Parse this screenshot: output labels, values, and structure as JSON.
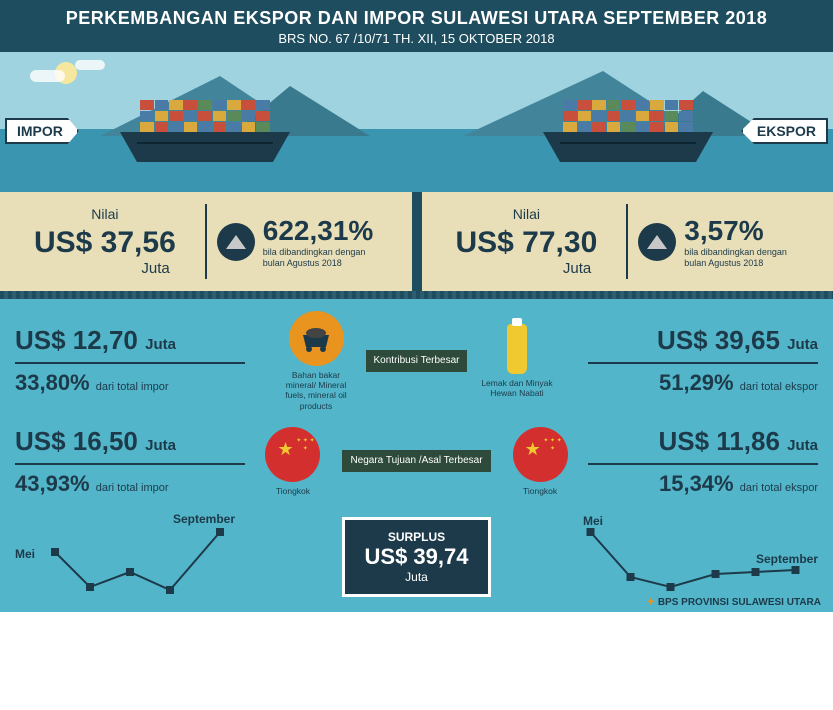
{
  "header": {
    "title": "PERKEMBANGAN EKSPOR DAN IMPOR  SULAWESI UTARA SEPTEMBER 2018",
    "subtitle": "BRS NO. 67 /10/71 TH. XII, 15 OKTOBER 2018"
  },
  "tags": {
    "impor": "IMPOR",
    "ekspor": "EKSPOR"
  },
  "impor_card": {
    "nilai_label": "Nilai",
    "value": "US$ 37,56",
    "unit": "Juta",
    "pct": "622,31%",
    "sub1": "bila dibandingkan dengan",
    "sub2": "bulan Agustus 2018"
  },
  "ekspor_card": {
    "nilai_label": "Nilai",
    "value": "US$ 77,30",
    "unit": "Juta",
    "pct": "3,57%",
    "sub1": "bila dibandingkan dengan",
    "sub2": "bulan Agustus 2018"
  },
  "kontribusi": {
    "badge": "Kontribusi Terbesar",
    "impor_val": "US$ 12,70",
    "impor_unit": "Juta",
    "impor_pct": "33,80%",
    "impor_sub": "dari total impor",
    "impor_label": "Bahan bakar mineral/ Mineral fuels, mineral oil products",
    "ekspor_val": "US$ 39,65",
    "ekspor_unit": "Juta",
    "ekspor_pct": "51,29%",
    "ekspor_sub": "dari total ekspor",
    "ekspor_label": "Lemak dan Minyak Hewan Nabati"
  },
  "negara": {
    "badge": "Negara Tujuan /Asal Terbesar",
    "impor_val": "US$ 16,50",
    "impor_unit": "Juta",
    "impor_pct": "43,93%",
    "impor_sub": "dari total impor",
    "country": "Tiongkok",
    "ekspor_val": "US$ 11,86",
    "ekspor_unit": "Juta",
    "ekspor_pct": "15,34%",
    "ekspor_sub": "dari total ekspor"
  },
  "surplus": {
    "title": "SURPLUS",
    "value": "US$ 39,74",
    "unit": "Juta"
  },
  "charts": {
    "mei": "Mei",
    "sep": "September",
    "impor_points": [
      [
        20,
        40
      ],
      [
        55,
        75
      ],
      [
        95,
        60
      ],
      [
        135,
        78
      ],
      [
        185,
        20
      ]
    ],
    "ekspor_points": [
      [
        20,
        20
      ],
      [
        60,
        65
      ],
      [
        100,
        75
      ],
      [
        145,
        62
      ],
      [
        185,
        60
      ],
      [
        225,
        58
      ]
    ],
    "line_color": "#1d3a4a"
  },
  "footer": "BPS PROVINSI SULAWESI UTARA",
  "colors": {
    "header_bg": "#1d4d5e",
    "card_bg": "#e8dfb8",
    "body_bg": "#52b5c9",
    "dark": "#1d3a4a"
  }
}
